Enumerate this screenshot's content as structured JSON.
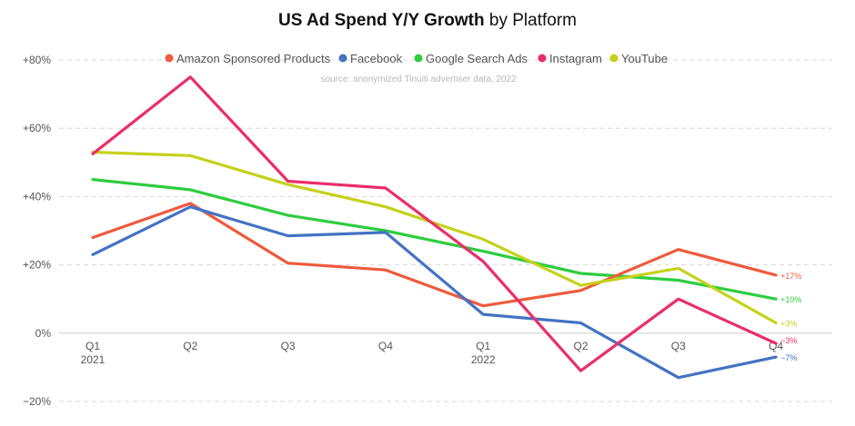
{
  "chart_data": {
    "type": "line",
    "title_bold": "US Ad Spend Y/Y Growth",
    "title_rest": " by Platform",
    "source": "source: anonymized Tinuiti advertiser data, 2022",
    "xlabel": "",
    "ylabel": "",
    "ylim": [
      -20,
      80
    ],
    "yticks": [
      {
        "value": 80,
        "label": "+80%"
      },
      {
        "value": 60,
        "label": "+60%"
      },
      {
        "value": 40,
        "label": "+40%"
      },
      {
        "value": 20,
        "label": "+20%"
      },
      {
        "value": 0,
        "label": "0%"
      },
      {
        "value": -20,
        "label": "−20%"
      }
    ],
    "categories": [
      "Q1",
      "Q2",
      "Q3",
      "Q4",
      "Q1",
      "Q2",
      "Q3",
      "Q4"
    ],
    "category_years": [
      "2021",
      "",
      "",
      "",
      "2022",
      "",
      "",
      ""
    ],
    "grid": "horizontal dashed",
    "legend_position": "top",
    "series": [
      {
        "name": "Amazon Sponsored Products",
        "color": "#ee5a3c",
        "values": [
          28,
          38,
          20.5,
          18.5,
          8,
          12.5,
          24.5,
          17
        ],
        "end_label": "+17%"
      },
      {
        "name": "Facebook",
        "color": "#4472c4",
        "values": [
          23,
          37,
          28.5,
          29.5,
          5.5,
          3,
          -13,
          -7
        ],
        "end_label": "−7%"
      },
      {
        "name": "Google Search Ads",
        "color": "#2ecc40",
        "values": [
          45,
          42,
          34.5,
          30,
          24,
          17.5,
          15.5,
          10
        ],
        "end_label": "+10%"
      },
      {
        "name": "Instagram",
        "color": "#ea2e6a",
        "values": [
          52.5,
          75,
          44.5,
          42.5,
          21,
          -11,
          10,
          -3
        ],
        "end_label": "−3%"
      },
      {
        "name": "YouTube",
        "color": "#c5d11a",
        "values": [
          53,
          52,
          43.5,
          37,
          27.5,
          14,
          19,
          3
        ],
        "end_label": "+3%"
      }
    ]
  }
}
